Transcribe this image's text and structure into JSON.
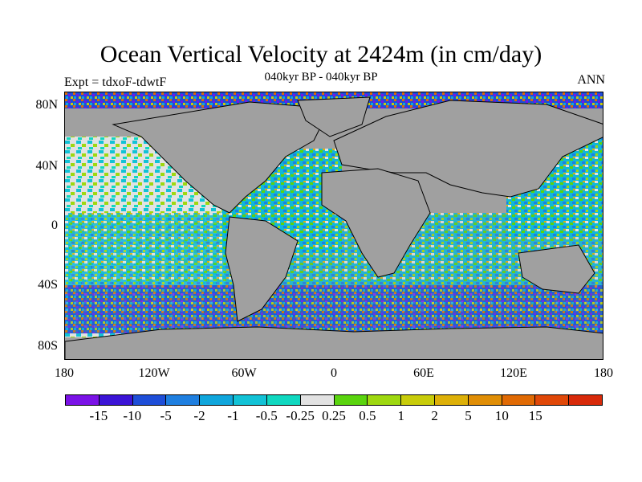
{
  "title": "Ocean Vertical Velocity at 2424m (in cm/day)",
  "subtitle": "040kyr BP - 040kyr BP",
  "left_label": "Expt = tdxoF-tdwtF",
  "right_label": "ANN",
  "lat_labels": [
    "80N",
    "40N",
    "0",
    "40S",
    "80S"
  ],
  "lon_labels": [
    "180",
    "120W",
    "60W",
    "0",
    "60E",
    "120E",
    "180"
  ],
  "colorbar": {
    "colors": [
      "#7a12e6",
      "#3b14d6",
      "#1e4ed8",
      "#1f7fe0",
      "#10a6dc",
      "#12c2d6",
      "#10d8c0",
      "#e2e2e2",
      "#5ad40e",
      "#9ed810",
      "#c8cc0a",
      "#ddb008",
      "#e08e06",
      "#e06a04",
      "#e04808",
      "#d82a0a"
    ],
    "labels": [
      "-15",
      "-10",
      "-5",
      "-2",
      "-1",
      "-0.5",
      "-0.25",
      "0.25",
      "0.5",
      "1",
      "2",
      "5",
      "10",
      "15"
    ]
  }
}
